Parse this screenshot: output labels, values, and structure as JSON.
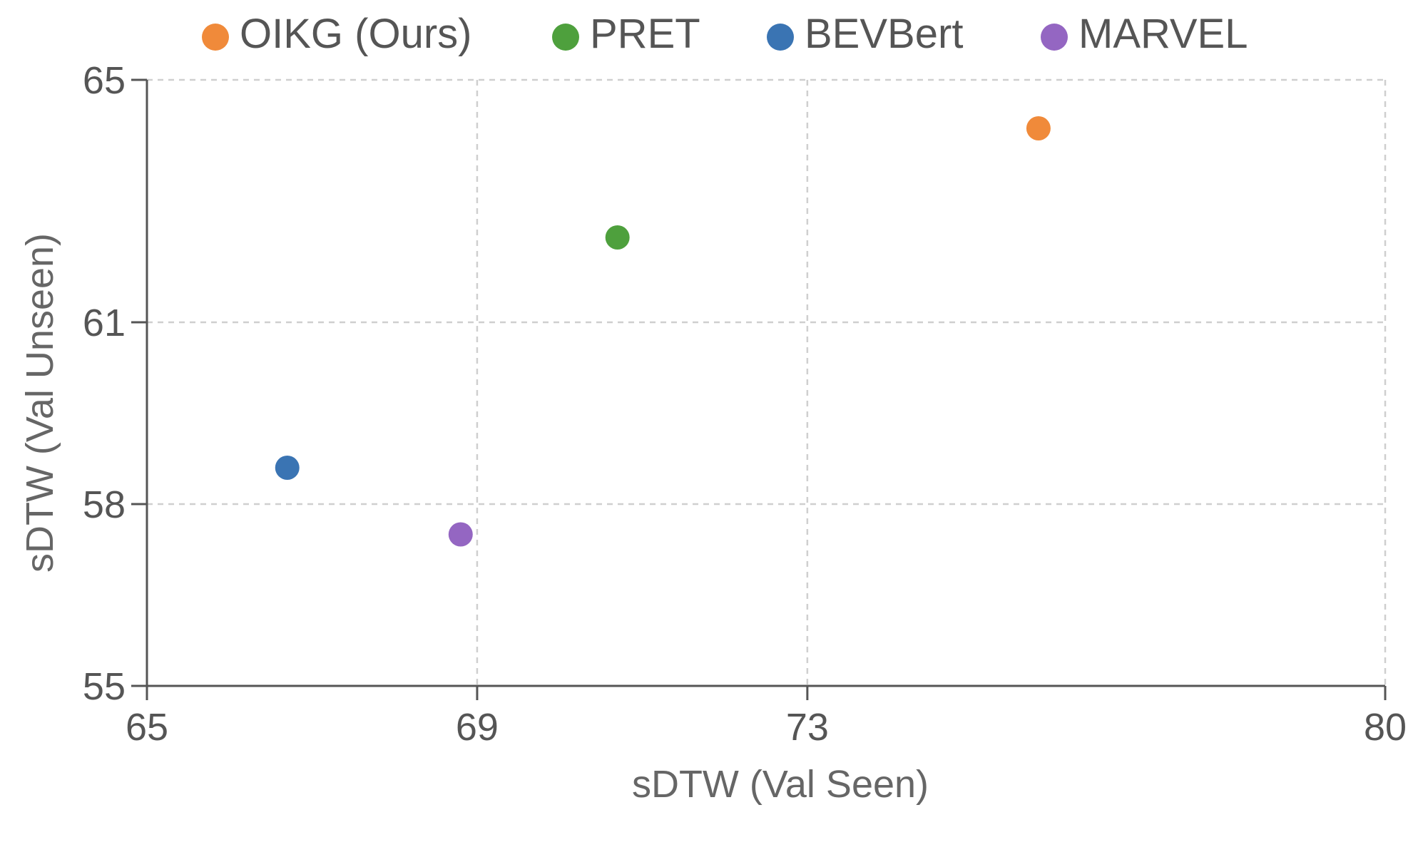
{
  "chart_data": {
    "type": "scatter",
    "xlabel": "sDTW (Val Seen)",
    "ylabel": "sDTW (Val Unseen)",
    "xlim": [
      65,
      80
    ],
    "ylim": [
      55,
      65
    ],
    "xticks": [
      65,
      69,
      73,
      80
    ],
    "yticks": [
      55,
      58,
      61,
      65
    ],
    "xtick_labels": [
      "65",
      "69",
      "73",
      "80"
    ],
    "ytick_labels": [
      "55",
      "58",
      "61",
      "65"
    ],
    "grid": true,
    "legend_position": "top",
    "series": [
      {
        "name": "OIKG (Ours)",
        "color": "#f08a3a",
        "points": [
          {
            "x": 75.8,
            "y": 64.2
          }
        ]
      },
      {
        "name": "PRET",
        "color": "#4ea03d",
        "points": [
          {
            "x": 70.7,
            "y": 62.4
          }
        ]
      },
      {
        "name": "BEVBert",
        "color": "#3a74b3",
        "points": [
          {
            "x": 66.7,
            "y": 58.6
          }
        ]
      },
      {
        "name": "MARVEL",
        "color": "#9466c2",
        "points": [
          {
            "x": 68.8,
            "y": 57.5
          }
        ]
      }
    ]
  }
}
